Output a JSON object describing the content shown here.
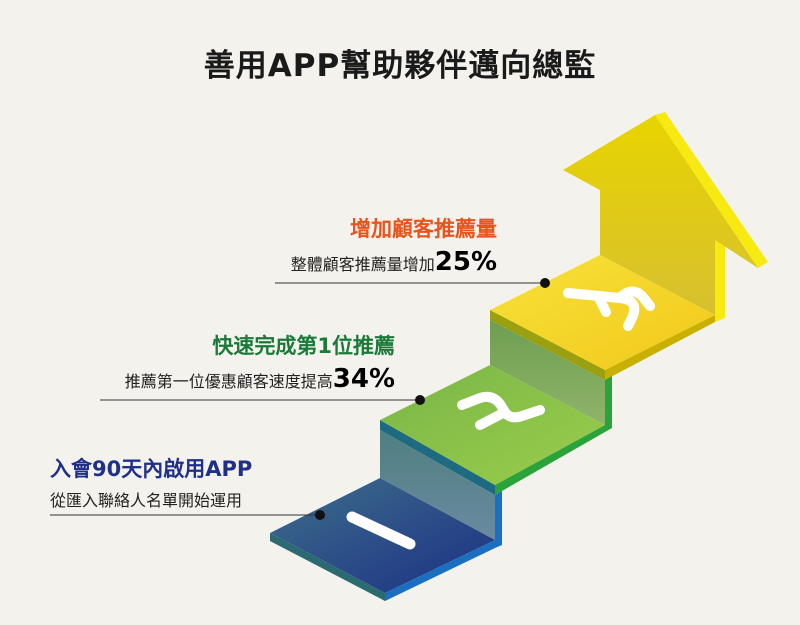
{
  "title": "善用APP幫助夥伴邁向總監",
  "colors": {
    "step1": "#1f3f8c",
    "step2": "#8cc63f",
    "step3": "#f2cf1a",
    "arrow": "#e6d000",
    "step3_heading": "#e8541c",
    "step2_heading": "#1a7a3a",
    "step1_heading": "#1f2f8c"
  },
  "steps": [
    {
      "number": "1",
      "heading": "入會90天內啟用APP",
      "detail": "從匯入聯絡人名單開始運用",
      "value": ""
    },
    {
      "number": "2",
      "heading": "快速完成第1位推薦",
      "detail": "推薦第一位優惠顧客速度提高",
      "value": "34%"
    },
    {
      "number": "3",
      "heading": "增加顧客推薦量",
      "detail": "整體顧客推薦量增加",
      "value": "25%"
    }
  ]
}
